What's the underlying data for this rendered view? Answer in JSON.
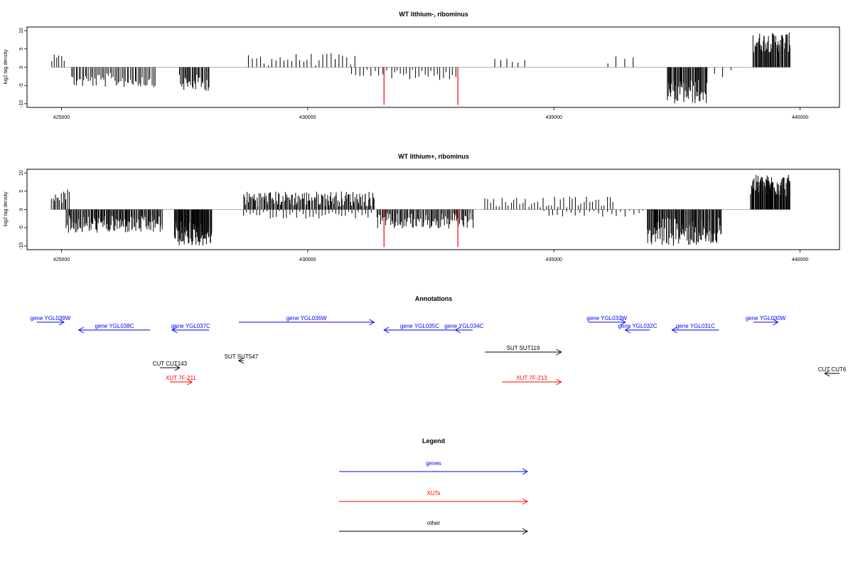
{
  "chart_data": [
    {
      "type": "bar",
      "title": "WT lithium-, ribominus",
      "ylabel": "log2 tag density",
      "xlim": [
        424300,
        440800
      ],
      "ylim": [
        -11,
        11
      ],
      "x_ticks": [
        425000,
        430000,
        435000,
        440000
      ],
      "y_ticks": [
        -10,
        -5,
        0,
        5,
        10
      ],
      "x_tick_labels": [
        "425000",
        "430000",
        "435000",
        "440000"
      ],
      "y_tick_labels": [
        "-10",
        "-5",
        "0",
        "5",
        "10"
      ],
      "zero_line": true,
      "regions": [
        {
          "name": "fwd-left",
          "start": 424800,
          "end": 425050,
          "min": 0.5,
          "max": 3.5,
          "count": 6,
          "sign": 1
        },
        {
          "name": "rev-YGL038C",
          "start": 425200,
          "end": 426900,
          "min": 1.5,
          "max": 5.5,
          "count": 55,
          "sign": -1
        },
        {
          "name": "rev-YGL037C",
          "start": 427400,
          "end": 428000,
          "min": 2.0,
          "max": 6.5,
          "count": 30,
          "sign": -1
        },
        {
          "name": "fwd-YGL036W",
          "start": 428800,
          "end": 430950,
          "min": 0.3,
          "max": 3.8,
          "count": 28,
          "sign": 1
        },
        {
          "name": "rev-mid",
          "start": 430900,
          "end": 431600,
          "min": 0.3,
          "max": 2.5,
          "count": 10,
          "sign": -1
        },
        {
          "name": "rev-YGL035C",
          "start": 431700,
          "end": 433000,
          "min": 0.5,
          "max": 3.5,
          "count": 22,
          "sign": -1
        },
        {
          "name": "fwd-434000",
          "start": 433800,
          "end": 434400,
          "min": 0.8,
          "max": 2.8,
          "count": 6,
          "sign": 1
        },
        {
          "name": "fwd-436000",
          "start": 436100,
          "end": 436600,
          "min": 1.0,
          "max": 3.0,
          "count": 4,
          "sign": 1
        },
        {
          "name": "rev-YGL031C",
          "start": 437300,
          "end": 438100,
          "min": 3.0,
          "max": 10.0,
          "count": 60,
          "sign": -1
        },
        {
          "name": "rev-tail",
          "start": 438100,
          "end": 438600,
          "min": 0.5,
          "max": 3.0,
          "count": 4,
          "sign": -1
        },
        {
          "name": "fwd-YGL030W",
          "start": 439050,
          "end": 439800,
          "min": 4.0,
          "max": 9.5,
          "count": 55,
          "sign": 1
        }
      ],
      "highlights": [
        {
          "x": 431550,
          "y": -10.3,
          "color": "#ff0000"
        },
        {
          "x": 433050,
          "y": -10.3,
          "color": "#ff0000"
        }
      ]
    },
    {
      "type": "bar",
      "title": "WT lithium+, ribominus",
      "ylabel": "log2 tag density",
      "xlim": [
        424300,
        440800
      ],
      "ylim": [
        -11,
        11
      ],
      "x_ticks": [
        425000,
        430000,
        435000,
        440000
      ],
      "y_ticks": [
        -10,
        -5,
        0,
        5,
        10
      ],
      "x_tick_labels": [
        "425000",
        "430000",
        "435000",
        "440000"
      ],
      "y_tick_labels": [
        "-10",
        "-5",
        "0",
        "5",
        "10"
      ],
      "zero_line": true,
      "regions": [
        {
          "name": "fwd-left",
          "start": 424800,
          "end": 425150,
          "min": 1.0,
          "max": 5.5,
          "count": 14,
          "sign": 1
        },
        {
          "name": "rev-YGL038C",
          "start": 425100,
          "end": 427050,
          "min": 1.5,
          "max": 6.5,
          "count": 120,
          "sign": -1
        },
        {
          "name": "rev-YGL037C",
          "start": 427300,
          "end": 428050,
          "min": 3.0,
          "max": 10.0,
          "count": 80,
          "sign": -1
        },
        {
          "name": "fwd-YGL036W",
          "start": 428700,
          "end": 431350,
          "min": 0.8,
          "max": 5.0,
          "count": 140,
          "sign": 1
        },
        {
          "name": "rev-mid",
          "start": 428700,
          "end": 431300,
          "min": 0.3,
          "max": 2.5,
          "count": 40,
          "sign": -1
        },
        {
          "name": "rev-YGL035C",
          "start": 431400,
          "end": 433350,
          "min": 1.0,
          "max": 5.5,
          "count": 90,
          "sign": -1
        },
        {
          "name": "fwd-mid-right",
          "start": 433600,
          "end": 436200,
          "min": 0.5,
          "max": 3.5,
          "count": 45,
          "sign": 1
        },
        {
          "name": "rev-scatter",
          "start": 434800,
          "end": 437000,
          "min": 0.3,
          "max": 2.0,
          "count": 25,
          "sign": -1
        },
        {
          "name": "rev-YGL031C",
          "start": 436900,
          "end": 438400,
          "min": 2.0,
          "max": 10.0,
          "count": 110,
          "sign": -1
        },
        {
          "name": "fwd-YGL030W",
          "start": 439000,
          "end": 439800,
          "min": 3.0,
          "max": 9.5,
          "count": 90,
          "sign": 1
        }
      ],
      "highlights": [
        {
          "x": 431550,
          "y": -10.3,
          "color": "#ff0000"
        },
        {
          "x": 433050,
          "y": -10.3,
          "color": "#ff0000"
        }
      ]
    }
  ],
  "annotations": {
    "title": "Annotations",
    "xlim": [
      424300,
      440800
    ],
    "features": [
      {
        "label": "gene YGL039W",
        "start": 424500,
        "end": 425050,
        "strand": "+",
        "row": 0,
        "color": "#0000ff"
      },
      {
        "label": "gene YGL038C",
        "start": 425350,
        "end": 426800,
        "strand": "-",
        "row": 1,
        "color": "#0000ff"
      },
      {
        "label": "gene YGL037C",
        "start": 427250,
        "end": 428000,
        "strand": "-",
        "row": 1,
        "color": "#0000ff"
      },
      {
        "label": "gene YGL036W",
        "start": 428600,
        "end": 431350,
        "strand": "+",
        "row": 0,
        "color": "#0000ff"
      },
      {
        "label": "gene YGL035C",
        "start": 431550,
        "end": 433000,
        "strand": "-",
        "row": 1,
        "color": "#0000ff"
      },
      {
        "label": "gene YGL034C",
        "start": 433000,
        "end": 433350,
        "strand": "-",
        "row": 1,
        "color": "#0000ff"
      },
      {
        "label": "gene YGL033W",
        "start": 435700,
        "end": 436450,
        "strand": "+",
        "row": 0,
        "color": "#0000ff"
      },
      {
        "label": "gene YGL032C",
        "start": 436450,
        "end": 436950,
        "strand": "-",
        "row": 1,
        "color": "#0000ff"
      },
      {
        "label": "gene YGL031C",
        "start": 437400,
        "end": 438350,
        "strand": "-",
        "row": 1,
        "color": "#0000ff"
      },
      {
        "label": "gene YGL030W",
        "start": 439050,
        "end": 439550,
        "strand": "+",
        "row": 0,
        "color": "#0000ff"
      },
      {
        "label": "SUT SUT119",
        "start": 433600,
        "end": 435150,
        "strand": "+",
        "row": 2,
        "color": "#000000"
      },
      {
        "label": "SUT SUT547",
        "start": 428600,
        "end": 428700,
        "strand": "-",
        "row": 3,
        "color": "#000000"
      },
      {
        "label": "CUT CUT143",
        "start": 427000,
        "end": 427400,
        "strand": "+",
        "row": 4,
        "color": "#000000"
      },
      {
        "label": "CUT CUT6",
        "start": 440500,
        "end": 440900,
        "strand": "-",
        "row": 5,
        "color": "#000000"
      },
      {
        "label": "XUT 7F-211",
        "start": 427200,
        "end": 427650,
        "strand": "+",
        "row": 6,
        "color": "#ff0000"
      },
      {
        "label": "XUT 7F-213",
        "start": 433950,
        "end": 435150,
        "strand": "+",
        "row": 6,
        "color": "#ff0000"
      }
    ]
  },
  "legend": {
    "title": "Legend",
    "entries": [
      {
        "label": "genes",
        "color": "#0000ff"
      },
      {
        "label": "XUTs",
        "color": "#ff0000"
      },
      {
        "label": "other",
        "color": "#000000"
      }
    ]
  }
}
